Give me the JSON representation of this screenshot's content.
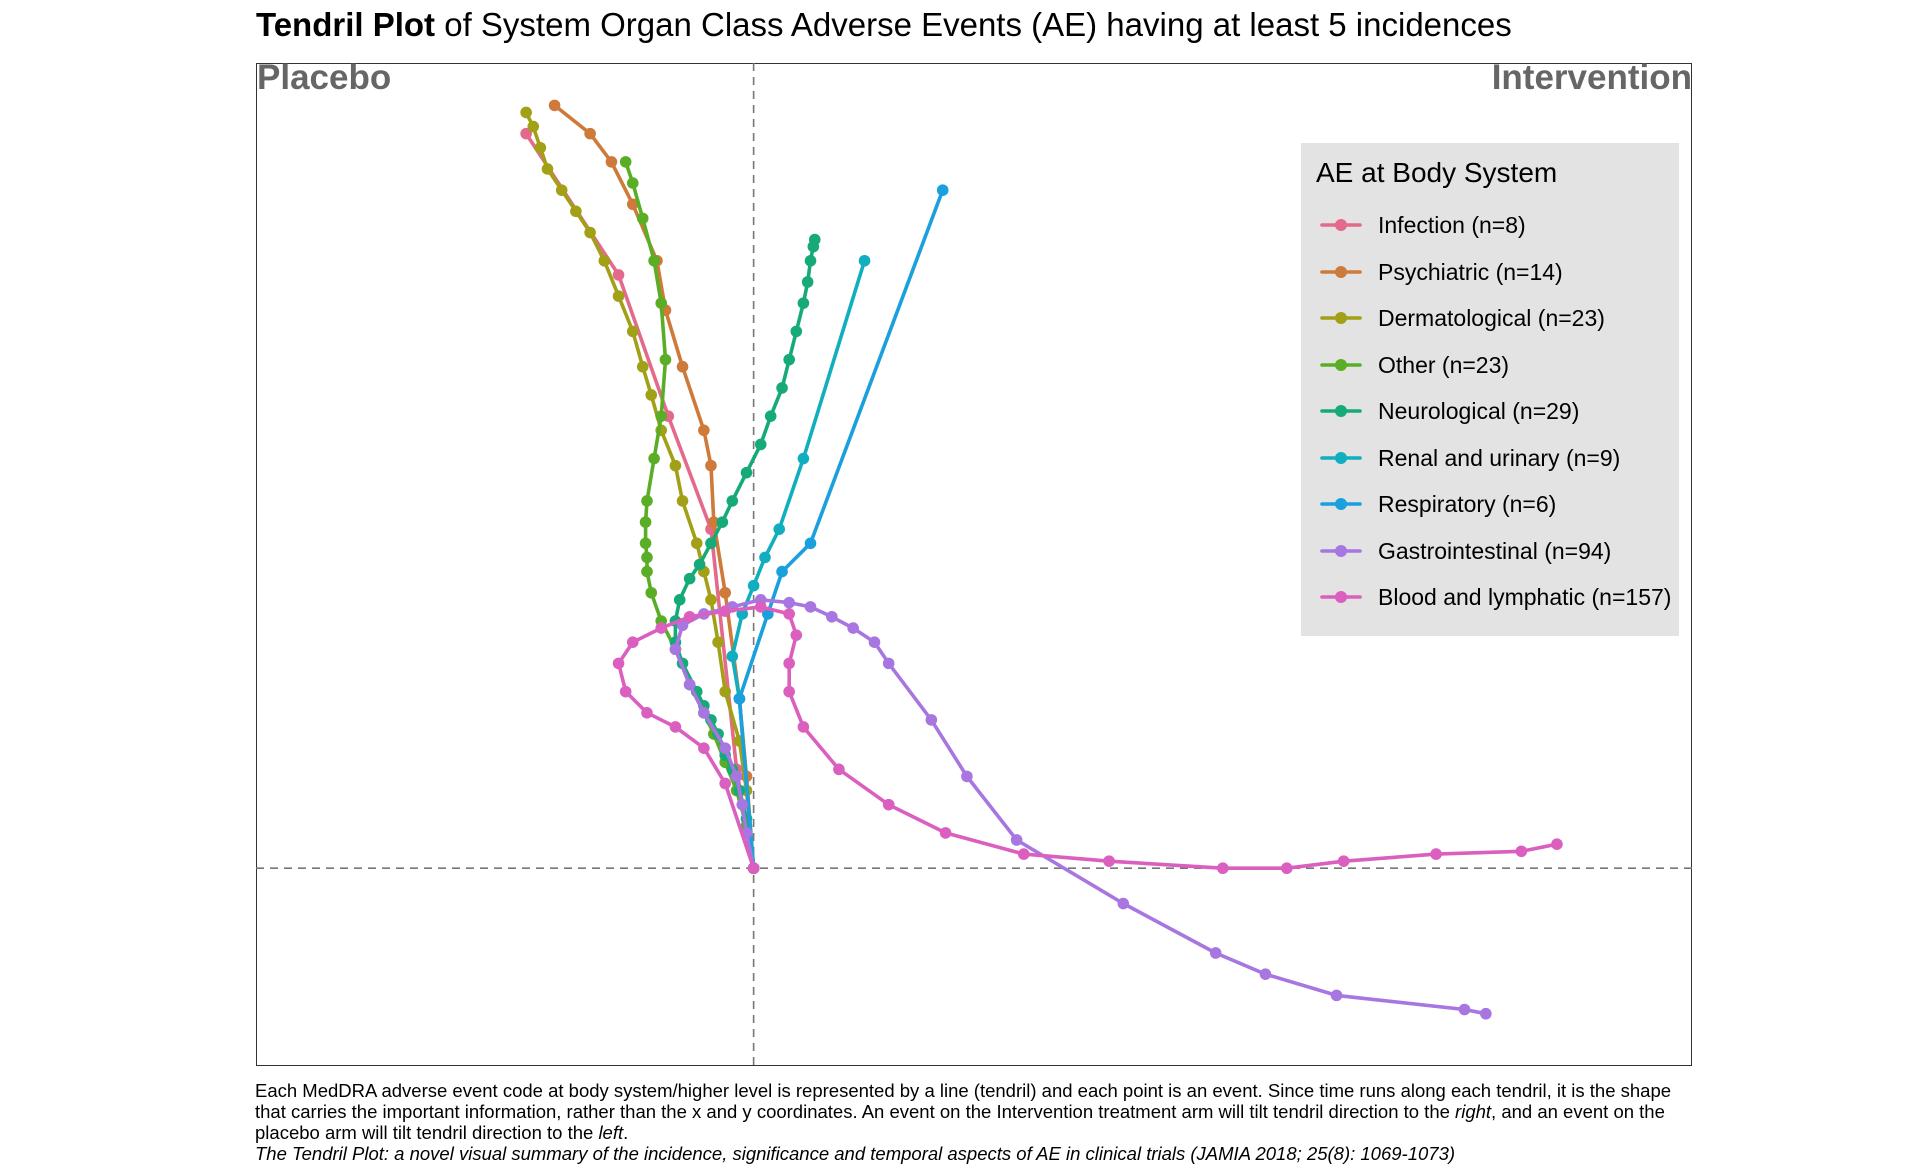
{
  "title": {
    "bold": "Tendril Plot",
    "rest": " of System Organ Class Adverse Events (AE) having at least 5 incidences"
  },
  "arms": {
    "left": "Placebo",
    "right": "Intervention"
  },
  "legend": {
    "title": "AE at Body System",
    "placement": "top-right"
  },
  "caption": {
    "part1": "Each MedDRA adverse event code at body system/higher level is represented by a line (tendril) and each point is an event. Since time runs along each tendril, it is the shape that carries the important information, rather than the x and y coordinates. An event on the Intervention treatment arm will tilt tendril direction to the ",
    "right": "right",
    "part2": ", and an event on the placebo arm will tilt tendril direction to the ",
    "left": "left",
    "part3": ".",
    "citation": "The Tendril Plot: a novel visual summary of the incidence, significance and temporal aspects of AE in clinical trials (JAMIA 2018; 25(8): 1069-1073)"
  },
  "chart_data": {
    "type": "line",
    "title": "Tendril Plot of System Organ Class Adverse Events (AE) having at least 5 incidences",
    "xlabel": "",
    "ylabel": "",
    "xlim": [
      -3.5,
      6.6
    ],
    "ylim": [
      -1.4,
      5.7
    ],
    "grid": false,
    "reference_lines": {
      "x": 0,
      "y": 0,
      "style": "dashed"
    },
    "series": [
      {
        "name": "Infection (n=8)",
        "color": "#E36A8A",
        "x": [
          0,
          -0.12,
          -0.3,
          -0.6,
          -0.95,
          -1.6
        ],
        "y": [
          0,
          0.7,
          2.4,
          3.2,
          4.2,
          5.2
        ]
      },
      {
        "name": "Psychiatric (n=14)",
        "color": "#CD7A3A",
        "x": [
          0,
          -0.05,
          -0.1,
          -0.2,
          -0.28,
          -0.3,
          -0.35,
          -0.5,
          -0.62,
          -0.68,
          -0.85,
          -1.0,
          -1.15,
          -1.4
        ],
        "y": [
          0,
          0.65,
          1.2,
          1.95,
          2.45,
          2.85,
          3.1,
          3.55,
          3.95,
          4.3,
          4.7,
          5.0,
          5.2,
          5.4
        ]
      },
      {
        "name": "Dermatological (n=23)",
        "color": "#A2A016",
        "x": [
          0,
          -0.05,
          -0.1,
          -0.2,
          -0.25,
          -0.3,
          -0.35,
          -0.4,
          -0.5,
          -0.55,
          -0.65,
          -0.72,
          -0.78,
          -0.85,
          -0.95,
          -1.05,
          -1.15,
          -1.25,
          -1.35,
          -1.45,
          -1.5,
          -1.55,
          -1.6
        ],
        "y": [
          0,
          0.55,
          0.9,
          1.25,
          1.6,
          1.9,
          2.1,
          2.3,
          2.6,
          2.85,
          3.1,
          3.35,
          3.55,
          3.8,
          4.05,
          4.3,
          4.5,
          4.65,
          4.8,
          4.95,
          5.1,
          5.25,
          5.35
        ]
      },
      {
        "name": "Other (n=23)",
        "color": "#5AAE26",
        "x": [
          0,
          -0.05,
          -0.12,
          -0.2,
          -0.28,
          -0.35,
          -0.45,
          -0.55,
          -0.65,
          -0.72,
          -0.75,
          -0.75,
          -0.76,
          -0.76,
          -0.75,
          -0.7,
          -0.65,
          -0.62,
          -0.65,
          -0.7,
          -0.78,
          -0.85,
          -0.9
        ],
        "y": [
          0,
          0.3,
          0.55,
          0.75,
          0.95,
          1.1,
          1.3,
          1.55,
          1.75,
          1.95,
          2.1,
          2.2,
          2.3,
          2.45,
          2.6,
          2.9,
          3.2,
          3.6,
          4.0,
          4.3,
          4.6,
          4.85,
          5.0
        ]
      },
      {
        "name": "Neurological (n=29)",
        "color": "#16AA7A",
        "x": [
          0,
          -0.05,
          -0.1,
          -0.15,
          -0.2,
          -0.25,
          -0.3,
          -0.35,
          -0.4,
          -0.5,
          -0.55,
          -0.55,
          -0.52,
          -0.45,
          -0.38,
          -0.3,
          -0.22,
          -0.15,
          -0.05,
          0.05,
          0.12,
          0.2,
          0.25,
          0.3,
          0.35,
          0.38,
          0.4,
          0.42,
          0.43
        ],
        "y": [
          0,
          0.35,
          0.55,
          0.7,
          0.8,
          0.95,
          1.05,
          1.15,
          1.25,
          1.45,
          1.6,
          1.75,
          1.9,
          2.05,
          2.15,
          2.3,
          2.45,
          2.6,
          2.8,
          3.0,
          3.2,
          3.4,
          3.6,
          3.8,
          4.0,
          4.15,
          4.3,
          4.4,
          4.45
        ]
      },
      {
        "name": "Renal and urinary (n=9)",
        "color": "#11AEC0",
        "x": [
          0,
          -0.1,
          -0.15,
          -0.08,
          0.0,
          0.08,
          0.18,
          0.35,
          0.78
        ],
        "y": [
          0,
          1.2,
          1.5,
          1.8,
          2.0,
          2.2,
          2.4,
          2.9,
          4.3
        ]
      },
      {
        "name": "Respiratory (n=6)",
        "color": "#1AA0DC",
        "x": [
          0,
          -0.1,
          0.1,
          0.2,
          0.4,
          1.33
        ],
        "y": [
          0,
          1.2,
          1.8,
          2.1,
          2.3,
          4.8
        ]
      },
      {
        "name": "Gastrointestinal (n=94)",
        "color": "#A876E0",
        "x": [
          0,
          -0.05,
          -0.08,
          -0.12,
          -0.2,
          -0.35,
          -0.45,
          -0.55,
          -0.5,
          -0.35,
          -0.15,
          0.05,
          0.25,
          0.4,
          0.55,
          0.7,
          0.85,
          0.95,
          1.25,
          1.5,
          1.85,
          2.6,
          3.25,
          3.6,
          4.1,
          5.0,
          5.15
        ],
        "y": [
          0,
          0.25,
          0.45,
          0.65,
          0.85,
          1.1,
          1.3,
          1.55,
          1.72,
          1.8,
          1.85,
          1.9,
          1.88,
          1.85,
          1.78,
          1.7,
          1.6,
          1.45,
          1.05,
          0.65,
          0.2,
          -0.25,
          -0.6,
          -0.75,
          -0.9,
          -1.0,
          -1.03
        ]
      },
      {
        "name": "Blood and lymphatic (n=157)",
        "color": "#DA5FBF",
        "x": [
          0,
          -0.2,
          -0.35,
          -0.55,
          -0.75,
          -0.9,
          -0.95,
          -0.85,
          -0.65,
          -0.45,
          -0.2,
          0.05,
          0.25,
          0.3,
          0.25,
          0.25,
          0.35,
          0.6,
          0.95,
          1.35,
          1.9,
          2.5,
          3.3,
          3.75,
          4.15,
          4.8,
          5.4,
          5.65
        ],
        "y": [
          0,
          0.6,
          0.85,
          1.0,
          1.1,
          1.25,
          1.45,
          1.6,
          1.7,
          1.78,
          1.82,
          1.85,
          1.8,
          1.65,
          1.45,
          1.25,
          1.0,
          0.7,
          0.45,
          0.25,
          0.1,
          0.05,
          0.0,
          0.0,
          0.05,
          0.1,
          0.12,
          0.17
        ]
      }
    ]
  }
}
